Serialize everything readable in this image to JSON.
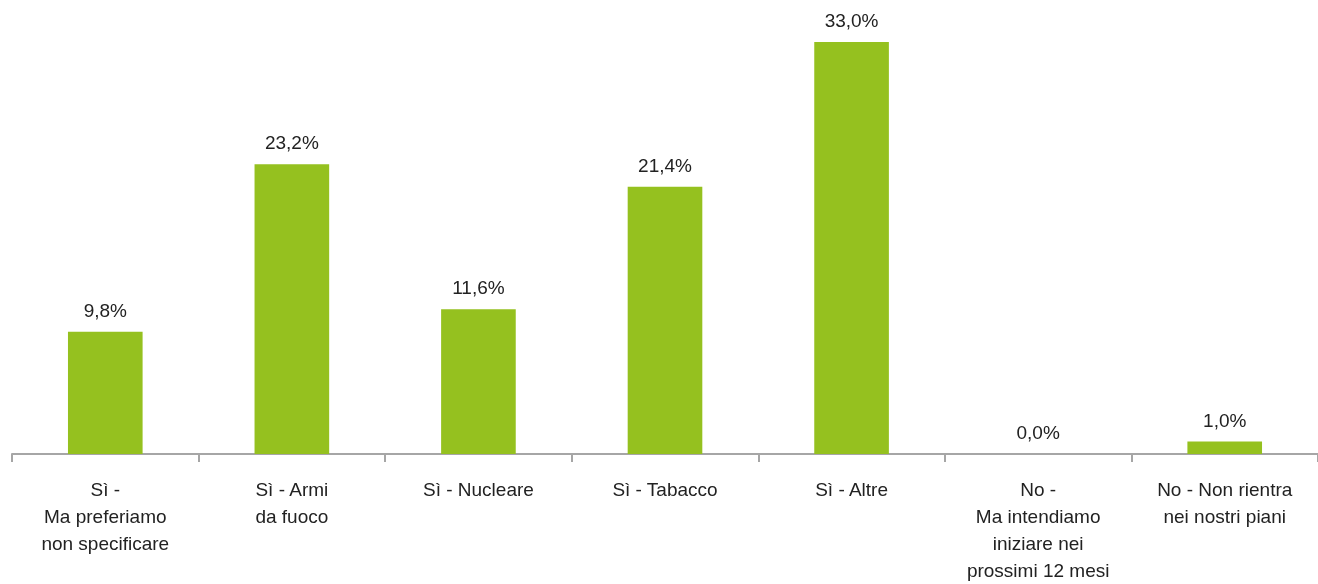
{
  "chart_data": {
    "type": "bar",
    "categories": [
      "Sì -\nMa preferiamo\nnon specificare",
      "Sì - Armi\nda fuoco",
      "Sì - Nucleare",
      "Sì - Tabacco",
      "Sì - Altre",
      "No -\nMa intendiamo\niniziare nei\nprossimi 12 mesi",
      "No - Non rientra\nnei nostri piani"
    ],
    "values": [
      9.8,
      23.2,
      11.6,
      21.4,
      33.0,
      0.0,
      1.0
    ],
    "value_labels": [
      "9,8%",
      "23,2%",
      "11,6%",
      "21,4%",
      "33,0%",
      "0,0%",
      "1,0%"
    ],
    "color": "#95c11f",
    "tick_labels": "x"
  }
}
